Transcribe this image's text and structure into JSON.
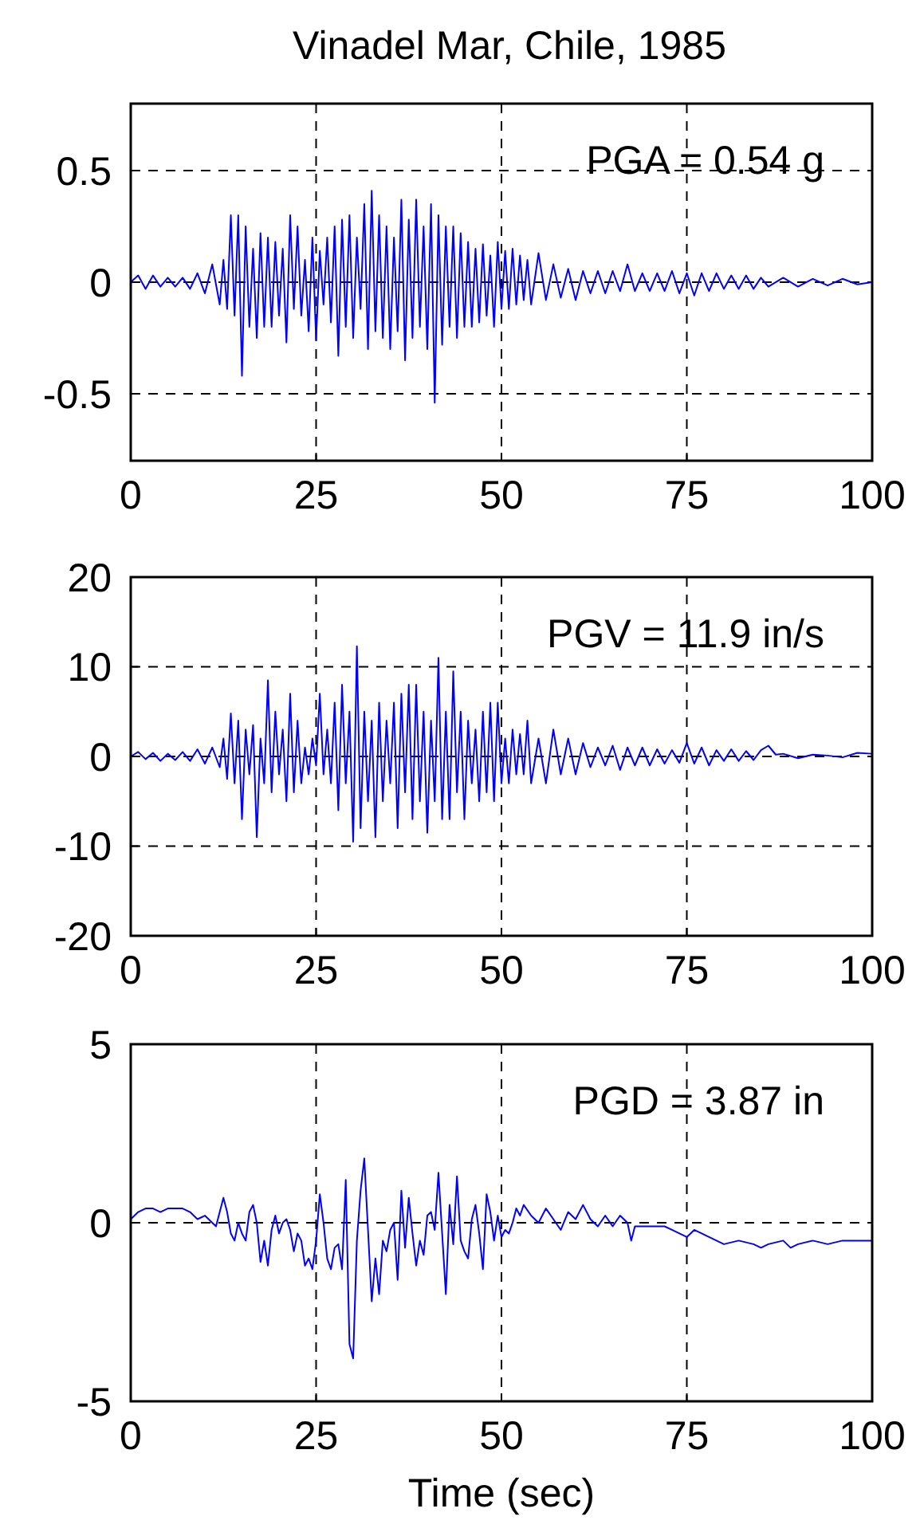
{
  "chart_data": [
    {
      "type": "line",
      "title": "Vinadel Mar, Chile, 1985",
      "annotations": [
        "PGA = 0.54 g"
      ],
      "xlim": [
        0,
        100
      ],
      "xticks": [
        0,
        25,
        50,
        75,
        100
      ],
      "ylim": [
        -0.8,
        0.8
      ],
      "yticks": [
        -0.5,
        0,
        0.5
      ],
      "grid": true,
      "series": [
        {
          "color": "#0000ff",
          "x": [
            0,
            1,
            2,
            3,
            4,
            5,
            6,
            7,
            8,
            9,
            10,
            11,
            12,
            12.5,
            13,
            13.5,
            14,
            14.5,
            15,
            15.5,
            16,
            16.5,
            17,
            17.5,
            18,
            18.5,
            19,
            19.5,
            20,
            20.5,
            21,
            21.5,
            22,
            22.5,
            23,
            23.5,
            24,
            24.5,
            25,
            25.5,
            26,
            26.5,
            27,
            27.5,
            28,
            28.5,
            29,
            29.5,
            30,
            30.5,
            31,
            31.5,
            32,
            32.5,
            33,
            33.5,
            34,
            34.5,
            35,
            35.5,
            36,
            36.5,
            37,
            37.5,
            38,
            38.5,
            39,
            39.5,
            40,
            40.5,
            41,
            41.5,
            42,
            42.5,
            43,
            43.5,
            44,
            44.5,
            45,
            45.5,
            46,
            46.5,
            47,
            47.5,
            48,
            48.5,
            49,
            49.5,
            50,
            50.5,
            51,
            51.5,
            52,
            52.5,
            53,
            53.5,
            54,
            55,
            56,
            57,
            58,
            59,
            60,
            61,
            62,
            63,
            64,
            65,
            66,
            67,
            68,
            69,
            70,
            71,
            72,
            73,
            74,
            75,
            76,
            77,
            78,
            79,
            80,
            81,
            82,
            83,
            84,
            85,
            86,
            88,
            90,
            92,
            94,
            96,
            98,
            100
          ],
          "values": [
            0,
            0.03,
            -0.03,
            0.03,
            -0.02,
            0.02,
            -0.02,
            0.02,
            -0.03,
            0.04,
            -0.05,
            0.08,
            -0.1,
            0.1,
            -0.12,
            0.3,
            -0.15,
            0.3,
            -0.42,
            0.25,
            -0.2,
            0.15,
            -0.25,
            0.22,
            -0.2,
            0.2,
            -0.2,
            0.18,
            -0.15,
            0.15,
            -0.27,
            0.3,
            -0.12,
            0.25,
            -0.15,
            0.1,
            -0.22,
            0.2,
            -0.26,
            0.14,
            -0.1,
            0.2,
            -0.18,
            0.25,
            -0.33,
            0.28,
            -0.2,
            0.3,
            -0.25,
            0.2,
            -0.12,
            0.35,
            -0.3,
            0.41,
            -0.22,
            0.3,
            -0.25,
            0.25,
            -0.3,
            0.2,
            -0.22,
            0.37,
            -0.35,
            0.28,
            -0.25,
            0.37,
            -0.2,
            0.25,
            -0.3,
            0.35,
            -0.54,
            0.3,
            -0.28,
            0.25,
            -0.2,
            0.25,
            -0.25,
            0.22,
            -0.2,
            0.18,
            -0.2,
            0.15,
            -0.18,
            0.17,
            -0.15,
            0.12,
            -0.2,
            0.18,
            -0.12,
            0.14,
            -0.12,
            0.15,
            -0.1,
            0.12,
            -0.08,
            0.1,
            -0.1,
            0.13,
            -0.08,
            0.08,
            -0.07,
            0.06,
            -0.08,
            0.05,
            -0.05,
            0.05,
            -0.05,
            0.05,
            -0.04,
            0.08,
            -0.04,
            0.04,
            -0.04,
            0.04,
            -0.04,
            0.05,
            -0.05,
            0.04,
            -0.06,
            0.04,
            -0.04,
            0.04,
            -0.03,
            0.03,
            -0.03,
            0.03,
            -0.03,
            0.02,
            -0.02,
            0.02,
            -0.02,
            0.015,
            -0.015,
            0.015,
            -0.01,
            0
          ]
        }
      ]
    },
    {
      "type": "line",
      "annotations": [
        "PGV = 11.9 in/s"
      ],
      "xlim": [
        0,
        100
      ],
      "xticks": [
        0,
        25,
        50,
        75,
        100
      ],
      "ylim": [
        -20,
        20
      ],
      "yticks": [
        -20,
        -10,
        0,
        10,
        20
      ],
      "grid": true,
      "series": [
        {
          "color": "#0000ff",
          "x": [
            0,
            1,
            2,
            3,
            4,
            5,
            6,
            7,
            8,
            9,
            10,
            11,
            12,
            12.5,
            13,
            13.5,
            14,
            14.5,
            15,
            15.5,
            16,
            16.5,
            17,
            17.5,
            18,
            18.5,
            19,
            19.5,
            20,
            20.5,
            21,
            21.5,
            22,
            22.5,
            23,
            23.5,
            24,
            24.5,
            25,
            25.5,
            26,
            26.5,
            27,
            27.5,
            28,
            28.5,
            29,
            29.5,
            30,
            30.5,
            31,
            31.5,
            32,
            32.5,
            33,
            33.5,
            34,
            34.5,
            35,
            35.5,
            36,
            36.5,
            37,
            37.5,
            38,
            38.5,
            39,
            39.5,
            40,
            40.5,
            41,
            41.5,
            42,
            42.5,
            43,
            43.5,
            44,
            44.5,
            45,
            45.5,
            46,
            46.5,
            47,
            47.5,
            48,
            48.5,
            49,
            49.5,
            50,
            50.5,
            51,
            51.5,
            52,
            52.5,
            53,
            53.5,
            54,
            55,
            56,
            57,
            58,
            59,
            60,
            61,
            62,
            63,
            64,
            65,
            66,
            67,
            68,
            69,
            70,
            71,
            72,
            73,
            74,
            75,
            76,
            77,
            78,
            79,
            80,
            81,
            82,
            83,
            84,
            85,
            86,
            87,
            88,
            90,
            92,
            94,
            96,
            98,
            100
          ],
          "values": [
            0,
            0.5,
            -0.3,
            0.4,
            -0.5,
            0.3,
            -0.4,
            0.5,
            -0.5,
            0.8,
            -0.8,
            1,
            -1.2,
            2,
            -2.5,
            4.8,
            -3,
            4,
            -7,
            3,
            -2,
            3.5,
            -9,
            2,
            -3,
            8.5,
            -4,
            5,
            -2,
            3,
            -5,
            7,
            -4,
            4,
            -3,
            1,
            -2,
            2,
            -1,
            7,
            -2,
            3,
            -3,
            6,
            -6,
            8,
            -3,
            5,
            -9.5,
            12.3,
            -8,
            5,
            -5,
            4,
            -9,
            6,
            -5,
            4,
            -3,
            6,
            -8,
            7,
            -4,
            8,
            -7,
            8,
            -5,
            5,
            -8.5,
            4,
            -5,
            11,
            -7,
            5,
            -7,
            9.5,
            -4,
            5,
            -7,
            4,
            -3,
            3,
            -5,
            5,
            -4,
            6,
            -5,
            6,
            -3,
            2,
            -3,
            3,
            -2,
            2.5,
            -2,
            4,
            -3,
            2,
            -3,
            3,
            -2,
            2,
            -2,
            1.5,
            -1.2,
            1,
            -1,
            1.2,
            -1.5,
            1,
            -1,
            1,
            -1,
            0.8,
            -0.8,
            0.7,
            -0.7,
            1.5,
            -0.8,
            1,
            -1,
            0.7,
            -0.5,
            0.8,
            -0.5,
            0.6,
            -0.4,
            0.7,
            1.2,
            0.2,
            0.3,
            -0.2,
            0.2,
            0.1,
            -0.1,
            0.4,
            0.3
          ]
        }
      ]
    },
    {
      "type": "line",
      "xlabel": "Time (sec)",
      "annotations": [
        "PGD = 3.87 in"
      ],
      "xlim": [
        0,
        100
      ],
      "xticks": [
        0,
        25,
        50,
        75,
        100
      ],
      "ylim": [
        -5,
        5
      ],
      "yticks": [
        -5,
        0,
        5
      ],
      "grid": true,
      "series": [
        {
          "color": "#0000ff",
          "x": [
            0,
            1,
            2,
            3,
            4,
            5,
            6,
            7,
            8,
            9,
            10,
            11,
            11.5,
            12,
            12.5,
            13,
            13.5,
            14,
            14.5,
            15,
            15.5,
            16,
            16.5,
            17,
            17.5,
            18,
            18.5,
            19,
            19.5,
            20,
            20.5,
            21,
            21.5,
            22,
            22.5,
            23,
            23.5,
            24,
            24.5,
            25,
            25.5,
            26,
            26.5,
            27,
            27.5,
            28,
            28.5,
            29,
            29.5,
            30,
            30.5,
            31,
            31.5,
            32,
            32.5,
            33,
            33.5,
            34,
            34.5,
            35,
            35.5,
            36,
            36.5,
            37,
            37.5,
            38,
            38.5,
            39,
            39.5,
            40,
            40.5,
            41,
            41.5,
            42,
            42.5,
            43,
            43.5,
            44,
            44.5,
            45,
            45.5,
            46,
            46.5,
            47,
            47.5,
            48,
            48.5,
            49,
            49.5,
            50,
            50.5,
            51,
            51.5,
            52,
            52.5,
            53,
            54,
            55,
            56,
            57,
            58,
            59,
            60,
            61,
            62,
            63,
            64,
            65,
            66,
            67,
            67.5,
            68,
            70,
            72,
            73,
            74,
            75,
            76,
            77,
            78,
            79,
            80,
            82,
            84,
            85,
            86,
            88,
            89,
            90,
            92,
            94,
            96,
            98,
            100
          ],
          "values": [
            0.1,
            0.3,
            0.4,
            0.4,
            0.3,
            0.4,
            0.4,
            0.4,
            0.3,
            0.1,
            0.2,
            0,
            -0.1,
            0.3,
            0.7,
            0.3,
            -0.3,
            -0.5,
            0,
            -0.3,
            -0.5,
            0.3,
            0.5,
            0,
            -1.1,
            -0.5,
            -1.2,
            -0.2,
            0.2,
            -0.3,
            0,
            0.1,
            -0.2,
            -0.8,
            -0.3,
            -0.5,
            -1.2,
            -1,
            -1.3,
            -0.5,
            0.8,
            0,
            -1,
            -1.3,
            -0.7,
            -0.6,
            -1.3,
            1.2,
            -3.4,
            -3.8,
            -0.5,
            0.9,
            1.8,
            -0.2,
            -2.2,
            -1,
            -2,
            -0.5,
            -0.8,
            -0.2,
            0,
            -1.6,
            0.9,
            -0.7,
            0.7,
            -0.3,
            -1.2,
            -0.5,
            -0.9,
            0.2,
            0.3,
            -0.2,
            1.4,
            -0.3,
            -2,
            0.5,
            -0.6,
            1.3,
            -0.5,
            -0.8,
            -1,
            0.1,
            0.5,
            -0.3,
            -1.3,
            0.8,
            0.3,
            -0.5,
            0.2,
            -0.4,
            -0.2,
            -0.3,
            0,
            0.4,
            0.2,
            0.5,
            0.2,
            0,
            0.4,
            0.1,
            -0.2,
            0.3,
            0.1,
            0.5,
            0.1,
            -0.1,
            0.2,
            -0.1,
            0.2,
            0,
            -0.5,
            -0.1,
            -0.1,
            -0.1,
            -0.2,
            -0.3,
            -0.4,
            -0.2,
            -0.3,
            -0.4,
            -0.5,
            -0.6,
            -0.5,
            -0.6,
            -0.7,
            -0.6,
            -0.5,
            -0.7,
            -0.6,
            -0.5,
            -0.6,
            -0.5,
            -0.5,
            -0.5
          ]
        }
      ]
    }
  ]
}
